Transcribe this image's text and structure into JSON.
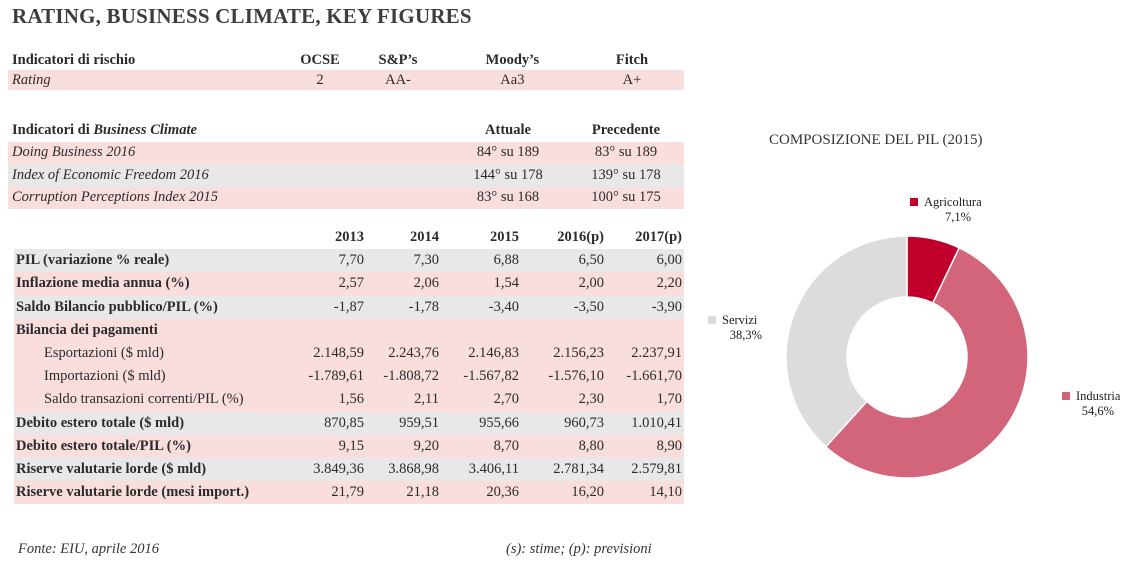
{
  "title": "RATING, BUSINESS CLIMATE, KEY FIGURES",
  "risk": {
    "headers": [
      "Indicatori di rischio",
      "OCSE",
      "S&P’s",
      "Moody’s",
      "Fitch"
    ],
    "row": [
      "Rating",
      "2",
      "AA-",
      "Aa3",
      "A+"
    ]
  },
  "business_climate": {
    "header_prefix": "Indicatori di ",
    "header_italic": "Business Climate",
    "col_current": "Attuale",
    "col_previous": "Precedente",
    "rows": [
      {
        "name": "Doing Business 2016",
        "current": "84° su 189",
        "previous": "83° su 189"
      },
      {
        "name": "Index of Economic Freedom 2016",
        "current": "144° su 178",
        "previous": "139° su 178"
      },
      {
        "name": "Corruption Perceptions Index 2015",
        "current": "83° su 168",
        "previous": "100° su 175"
      }
    ]
  },
  "key_figures": {
    "years": [
      "2013",
      "2014",
      "2015",
      "2016(p)",
      "2017(p)"
    ],
    "rows": [
      {
        "label": "PIL (variazione % reale)",
        "values": [
          "7,70",
          "7,30",
          "6,88",
          "6,50",
          "6,00"
        ]
      },
      {
        "label": "Inflazione media annua (%)",
        "values": [
          "2,57",
          "2,06",
          "1,54",
          "2,00",
          "2,20"
        ]
      },
      {
        "label": "Saldo Bilancio pubblico/PIL (%)",
        "values": [
          "-1,87",
          "-1,78",
          "-3,40",
          "-3,50",
          "-3,90"
        ]
      },
      {
        "label": "Bilancia dei pagamenti",
        "values": [
          "",
          "",
          "",
          "",
          ""
        ]
      },
      {
        "label": "Esportazioni ($ mld)",
        "values": [
          "2.148,59",
          "2.243,76",
          "2.146,83",
          "2.156,23",
          "2.237,91"
        ]
      },
      {
        "label": "Importazioni ($ mld)",
        "values": [
          "-1.789,61",
          "-1.808,72",
          "-1.567,82",
          "-1.576,10",
          "-1.661,70"
        ]
      },
      {
        "label": "Saldo transazioni correnti/PIL (%)",
        "values": [
          "1,56",
          "2,11",
          "2,70",
          "2,30",
          "1,70"
        ]
      },
      {
        "label": "Debito estero totale ($ mld)",
        "values": [
          "870,85",
          "959,51",
          "955,66",
          "960,73",
          "1.010,41"
        ]
      },
      {
        "label": "Debito estero totale/PIL (%)",
        "values": [
          "9,15",
          "9,20",
          "8,70",
          "8,80",
          "8,90"
        ]
      },
      {
        "label": "Riserve valutarie lorde ($ mld)",
        "values": [
          "3.849,36",
          "3.868,98",
          "3.406,11",
          "2.781,34",
          "2.579,81"
        ]
      },
      {
        "label": "Riserve valutarie lorde (mesi import.)",
        "values": [
          "21,79",
          "21,18",
          "20,36",
          "16,20",
          "14,10"
        ]
      }
    ]
  },
  "footer": {
    "source": "Fonte: EIU, aprile 2016",
    "legend": "(s): stime; (p): previsioni"
  },
  "chart_data": {
    "type": "pie",
    "title": "COMPOSIZIONE DEL PIL (2015)",
    "slices": [
      {
        "name": "Agricoltura",
        "value": 7.1,
        "label": "7,1%",
        "color": "#c0002a"
      },
      {
        "name": "Industria",
        "value": 54.6,
        "label": "54,6%",
        "color": "#d2657a"
      },
      {
        "name": "Servizi",
        "value": 38.3,
        "label": "38,3%",
        "color": "#dcdcdc"
      }
    ]
  }
}
